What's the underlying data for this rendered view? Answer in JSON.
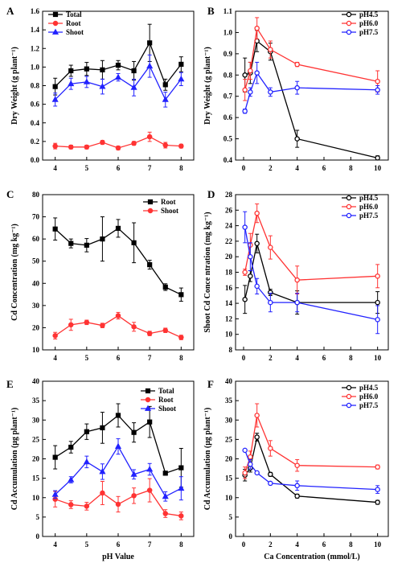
{
  "chart_data": [
    {
      "panel": "A",
      "type": "line",
      "ylabel": "Dry Weight (g plant⁻¹)",
      "xlabel": "",
      "xlim": [
        3.6,
        8.4
      ],
      "ylim": [
        0,
        1.6
      ],
      "xticks": [
        4,
        5,
        6,
        7,
        8
      ],
      "yticks": [
        0,
        0.2,
        0.4,
        0.6,
        0.8,
        1.0,
        1.2,
        1.4,
        1.6
      ],
      "ytick_labels": [
        "0.0",
        "0.2",
        "0.4",
        "0.6",
        "0.8",
        "1.0",
        "1.2",
        "1.4",
        "1.6"
      ],
      "legend_position": "top-left",
      "series": [
        {
          "name": "Total",
          "color": "#000000",
          "marker": "square",
          "x": [
            4,
            4.5,
            5,
            5.5,
            6,
            6.5,
            7,
            7.5,
            8
          ],
          "y": [
            0.79,
            0.96,
            0.98,
            0.97,
            1.02,
            0.96,
            1.26,
            0.81,
            1.03
          ],
          "err": [
            0.09,
            0.06,
            0.07,
            0.1,
            0.05,
            0.1,
            0.2,
            0.06,
            0.08
          ]
        },
        {
          "name": "Root",
          "color": "#ff3333",
          "marker": "circle",
          "x": [
            4,
            4.5,
            5,
            5.5,
            6,
            6.5,
            7,
            7.5,
            8
          ],
          "y": [
            0.15,
            0.14,
            0.14,
            0.19,
            0.13,
            0.18,
            0.25,
            0.16,
            0.15
          ],
          "err": [
            0.03,
            0.02,
            0.02,
            0.02,
            0.02,
            0.02,
            0.05,
            0.03,
            0.02
          ]
        },
        {
          "name": "Shoot",
          "color": "#2222ff",
          "marker": "triangle",
          "x": [
            4,
            4.5,
            5,
            5.5,
            6,
            6.5,
            7,
            7.5,
            8
          ],
          "y": [
            0.65,
            0.82,
            0.84,
            0.79,
            0.89,
            0.78,
            1.01,
            0.65,
            0.87
          ],
          "err": [
            0.07,
            0.06,
            0.06,
            0.08,
            0.04,
            0.09,
            0.12,
            0.08,
            0.07
          ]
        }
      ]
    },
    {
      "panel": "B",
      "type": "line",
      "ylabel": "Dry Weight (g plant⁻¹)",
      "xlabel": "",
      "xlim": [
        -0.6,
        10.8
      ],
      "ylim": [
        0.4,
        1.1
      ],
      "xticks": [
        0,
        2,
        4,
        6,
        8,
        10
      ],
      "yticks": [
        0.4,
        0.5,
        0.6,
        0.7,
        0.8,
        0.9,
        1.0,
        1.1
      ],
      "ytick_labels": [
        "0.4",
        "0.5",
        "0.6",
        "0.7",
        "0.8",
        "0.9",
        "1.0",
        "1.1"
      ],
      "legend_position": "top-right",
      "series": [
        {
          "name": "pH4.5",
          "color": "#000000",
          "marker": "circle",
          "x": [
            0.1,
            0.5,
            1,
            2,
            4,
            10
          ],
          "y": [
            0.8,
            0.81,
            0.96,
            0.91,
            0.5,
            0.41
          ],
          "err": [
            0.08,
            0.05,
            0.05,
            0.04,
            0.04,
            0.01
          ]
        },
        {
          "name": "pH6.0",
          "color": "#ff3333",
          "marker": "circle",
          "x": [
            0.1,
            0.5,
            1,
            2,
            4,
            10
          ],
          "y": [
            0.73,
            0.82,
            1.02,
            0.92,
            0.85,
            0.77
          ],
          "err": [
            0.05,
            0.04,
            0.05,
            0.04,
            0.01,
            0.05
          ]
        },
        {
          "name": "pH7.5",
          "color": "#2222ff",
          "marker": "circle",
          "x": [
            0.1,
            0.5,
            1,
            2,
            4,
            10
          ],
          "y": [
            0.63,
            0.72,
            0.81,
            0.72,
            0.74,
            0.73
          ],
          "err": [
            0.01,
            0.02,
            0.05,
            0.02,
            0.03,
            0.02
          ]
        }
      ]
    },
    {
      "panel": "C",
      "type": "line",
      "ylabel": "Cd Concentration (mg kg⁻¹)",
      "xlabel": "",
      "xlim": [
        3.6,
        8.4
      ],
      "ylim": [
        10,
        80
      ],
      "xticks": [
        4,
        5,
        6,
        7,
        8
      ],
      "yticks": [
        10,
        20,
        30,
        40,
        50,
        60,
        70,
        80
      ],
      "ytick_labels": [
        "10",
        "20",
        "30",
        "40",
        "50",
        "60",
        "70",
        "80"
      ],
      "legend_position": "top-right",
      "series": [
        {
          "name": "Root",
          "color": "#000000",
          "marker": "square",
          "x": [
            4,
            4.5,
            5,
            5.5,
            6,
            6.5,
            7,
            7.5,
            8
          ],
          "y": [
            64.5,
            58,
            57.2,
            60,
            64.8,
            58.3,
            48.4,
            38.3,
            34.9
          ],
          "err": [
            5,
            2,
            3,
            10,
            4,
            9,
            2,
            1.5,
            3
          ]
        },
        {
          "name": "Shoot",
          "color": "#ff3333",
          "marker": "circle",
          "x": [
            4,
            4.5,
            5,
            5.5,
            6,
            6.5,
            7,
            7.5,
            8
          ],
          "y": [
            16.4,
            21.3,
            22.4,
            21,
            25.4,
            20.4,
            17.4,
            18.8,
            15.6
          ],
          "err": [
            1.5,
            2.5,
            1,
            1,
            1.5,
            2,
            1,
            1,
            1
          ]
        }
      ]
    },
    {
      "panel": "D",
      "type": "line",
      "ylabel": "Shoot Cd Conce ntration (mg kg⁻¹)",
      "xlabel": "",
      "xlim": [
        -0.6,
        10.8
      ],
      "ylim": [
        8,
        28
      ],
      "xticks": [
        0,
        2,
        4,
        6,
        8,
        10
      ],
      "yticks": [
        8,
        10,
        12,
        14,
        16,
        18,
        20,
        22,
        24,
        26,
        28
      ],
      "ytick_labels": [
        "8",
        "10",
        "12",
        "14",
        "16",
        "18",
        "20",
        "22",
        "24",
        "26",
        "28"
      ],
      "legend_position": "top-right",
      "series": [
        {
          "name": "pH4.5",
          "color": "#000000",
          "marker": "circle",
          "x": [
            0.1,
            0.5,
            1,
            2,
            4,
            10
          ],
          "y": [
            14.5,
            17.5,
            21.7,
            15.4,
            14.1,
            14.1
          ],
          "err": [
            1.8,
            0.7,
            1.2,
            0.4,
            1.5,
            1.4
          ]
        },
        {
          "name": "pH6.0",
          "color": "#ff3333",
          "marker": "circle",
          "x": [
            0.1,
            0.5,
            1,
            2,
            4,
            10
          ],
          "y": [
            18,
            21.5,
            25.6,
            21.2,
            17,
            17.5
          ],
          "err": [
            0.4,
            1.5,
            1.2,
            1.5,
            1.8,
            1.5
          ]
        },
        {
          "name": "pH7.5",
          "color": "#2222ff",
          "marker": "circle",
          "x": [
            0.1,
            0.5,
            1,
            2,
            4,
            10
          ],
          "y": [
            23.8,
            20,
            16.2,
            14.1,
            14.1,
            11.9
          ],
          "err": [
            2,
            1.8,
            1,
            1.2,
            1.2,
            1.8
          ]
        }
      ]
    },
    {
      "panel": "E",
      "type": "line",
      "ylabel": "Cd Accumulation (μg plant⁻¹)",
      "xlabel": "pH Value",
      "xlim": [
        3.6,
        8.4
      ],
      "ylim": [
        0,
        40
      ],
      "xticks": [
        4,
        5,
        6,
        7,
        8
      ],
      "yticks": [
        0,
        5,
        10,
        15,
        20,
        25,
        30,
        35,
        40
      ],
      "ytick_labels": [
        "0",
        "5",
        "10",
        "15",
        "20",
        "25",
        "30",
        "35",
        "40"
      ],
      "legend_position": "top-right",
      "series": [
        {
          "name": "Total",
          "color": "#000000",
          "marker": "square",
          "x": [
            4,
            4.5,
            5,
            5.5,
            6,
            6.5,
            7,
            7.5,
            8
          ],
          "y": [
            20.4,
            23,
            27,
            28,
            31.2,
            26.8,
            29.5,
            16.3,
            17.7
          ],
          "err": [
            3,
            1.5,
            2,
            4,
            3,
            2.5,
            4,
            0.5,
            5
          ]
        },
        {
          "name": "Root",
          "color": "#ff3333",
          "marker": "circle",
          "x": [
            4,
            4.5,
            5,
            5.5,
            6,
            6.5,
            7,
            7.5,
            8
          ],
          "y": [
            9.6,
            8.2,
            7.8,
            11.2,
            8.3,
            10.5,
            11.9,
            5.9,
            5.3
          ],
          "err": [
            2,
            1,
            1,
            3,
            2,
            2,
            3,
            1,
            1
          ]
        },
        {
          "name": "Shoot",
          "color": "#2222ff",
          "marker": "triangle",
          "x": [
            4,
            4.5,
            5,
            5.5,
            6,
            6.5,
            7,
            7.5,
            8
          ],
          "y": [
            10.8,
            14.6,
            19.2,
            16.7,
            23.2,
            16,
            17.3,
            10.3,
            12.4
          ],
          "err": [
            1,
            0.8,
            1.5,
            2,
            2,
            1.2,
            1.5,
            1.2,
            3
          ]
        }
      ]
    },
    {
      "panel": "F",
      "type": "line",
      "ylabel": "Cd Accumulation (μg plant⁻¹)",
      "xlabel": "Ca Concentration (mmol/L)",
      "xlim": [
        -0.6,
        10.8
      ],
      "ylim": [
        0,
        40
      ],
      "xticks": [
        0,
        2,
        4,
        6,
        8,
        10
      ],
      "yticks": [
        0,
        5,
        10,
        15,
        20,
        25,
        30,
        35,
        40
      ],
      "ytick_labels": [
        "0",
        "5",
        "10",
        "15",
        "20",
        "25",
        "30",
        "35",
        "40"
      ],
      "legend_position": "top-right",
      "series": [
        {
          "name": "pH4.5",
          "color": "#000000",
          "marker": "circle",
          "x": [
            0.1,
            0.5,
            1,
            2,
            4,
            10
          ],
          "y": [
            15.8,
            17.6,
            25.6,
            16,
            10.4,
            8.8
          ],
          "err": [
            1.5,
            1,
            1,
            0.5,
            0.5,
            0.5
          ]
        },
        {
          "name": "pH6.0",
          "color": "#ff3333",
          "marker": "circle",
          "x": [
            0.1,
            0.5,
            1,
            2,
            4,
            10
          ],
          "y": [
            16.4,
            20.5,
            31.2,
            22.7,
            18.3,
            17.9
          ],
          "err": [
            1.5,
            1.5,
            3,
            2,
            1.5,
            0.5
          ]
        },
        {
          "name": "pH7.5",
          "color": "#2222ff",
          "marker": "circle",
          "x": [
            0.1,
            0.5,
            1,
            2,
            4,
            10
          ],
          "y": [
            22.2,
            18.6,
            16.4,
            13.7,
            13.1,
            12.1
          ],
          "err": [
            0.3,
            1.2,
            0.3,
            0.3,
            1.2,
            1
          ]
        }
      ]
    }
  ]
}
